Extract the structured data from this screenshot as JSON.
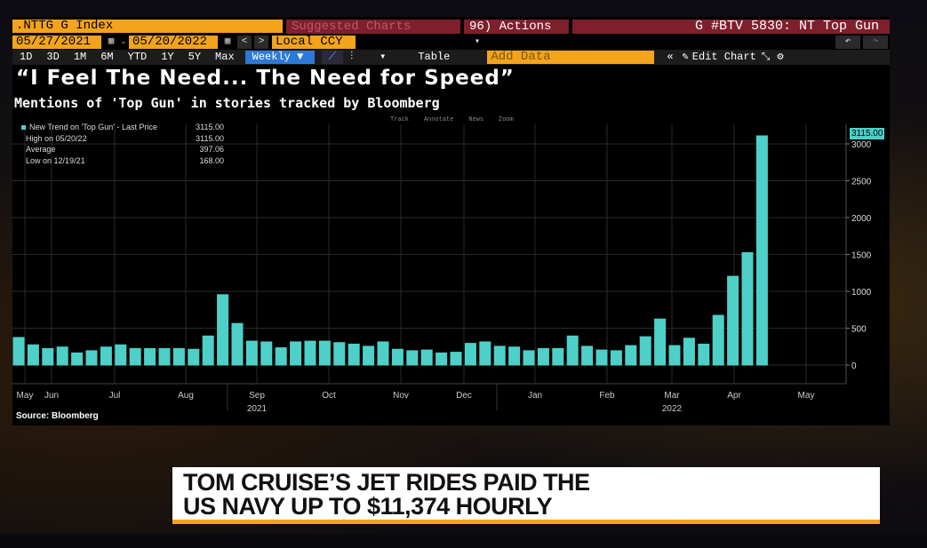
{
  "toolbar": {
    "ticker": ".NTTG G Index",
    "suggested": "Suggested Charts",
    "actions_label": "96) Actions",
    "actions_arrow": "▾",
    "title_right": "G #BTV 5830: NT Top Gun",
    "start_date": "05/27/2021",
    "end_date": "05/20/2022",
    "currency": "Local CCY",
    "periods": [
      "1D",
      "3D",
      "1M",
      "6M",
      "YTD",
      "1Y",
      "5Y",
      "Max"
    ],
    "frequency": "Weekly ▼",
    "table_label": "Table",
    "add_data_placeholder": "Add Data",
    "edit_chart": "Edit Chart"
  },
  "headline": "“I Feel The Need... The Need for Speed”",
  "subhead": "Mentions of 'Top Gun' in stories tracked by Bloomberg",
  "top_links": [
    "Track",
    "Annotate",
    "News",
    "Zoom"
  ],
  "legend": [
    {
      "name": "New Trend on 'Top Gun' - Last Price",
      "value": "3115.00"
    },
    {
      "name": "High on 05/20/22",
      "value": "3115.00"
    },
    {
      "name": "Average",
      "value": "397.06"
    },
    {
      "name": "Low on 12/19/21",
      "value": "168.00"
    }
  ],
  "price_tag": "3115.00",
  "source": "Source: Bloomberg",
  "banner": {
    "line1": "TOM CRUISE’S JET RIDES PAID THE",
    "line2": "US NAVY UP TO $11,374 HOURLY"
  },
  "colors": {
    "bar": "#4dd0c8",
    "amber": "#f3a41c",
    "accent_red": "#7e1f2c",
    "select_blue": "#2d7ad6"
  },
  "chart_data": {
    "type": "bar",
    "series": [
      {
        "name": "New Trend on 'Top Gun'",
        "values": [
          380,
          280,
          230,
          250,
          170,
          200,
          250,
          280,
          230,
          230,
          230,
          230,
          220,
          400,
          960,
          570,
          330,
          320,
          240,
          320,
          330,
          330,
          310,
          290,
          260,
          320,
          220,
          200,
          210,
          170,
          180,
          300,
          320,
          260,
          250,
          200,
          230,
          230,
          400,
          260,
          210,
          200,
          270,
          390,
          630,
          270,
          370,
          290,
          680,
          1210,
          1530,
          3115
        ]
      }
    ],
    "x_labels": [
      "May",
      "Jun",
      "Jul",
      "Aug",
      "Sep",
      "Oct",
      "Nov",
      "Dec",
      "Jan",
      "Feb",
      "Mar",
      "Apr",
      "May"
    ],
    "year_labels": [
      "2021",
      "2022"
    ],
    "yticks": [
      0,
      500,
      1000,
      1500,
      2000,
      2500,
      3000
    ],
    "ylim": [
      0,
      3200
    ],
    "grid": true
  }
}
